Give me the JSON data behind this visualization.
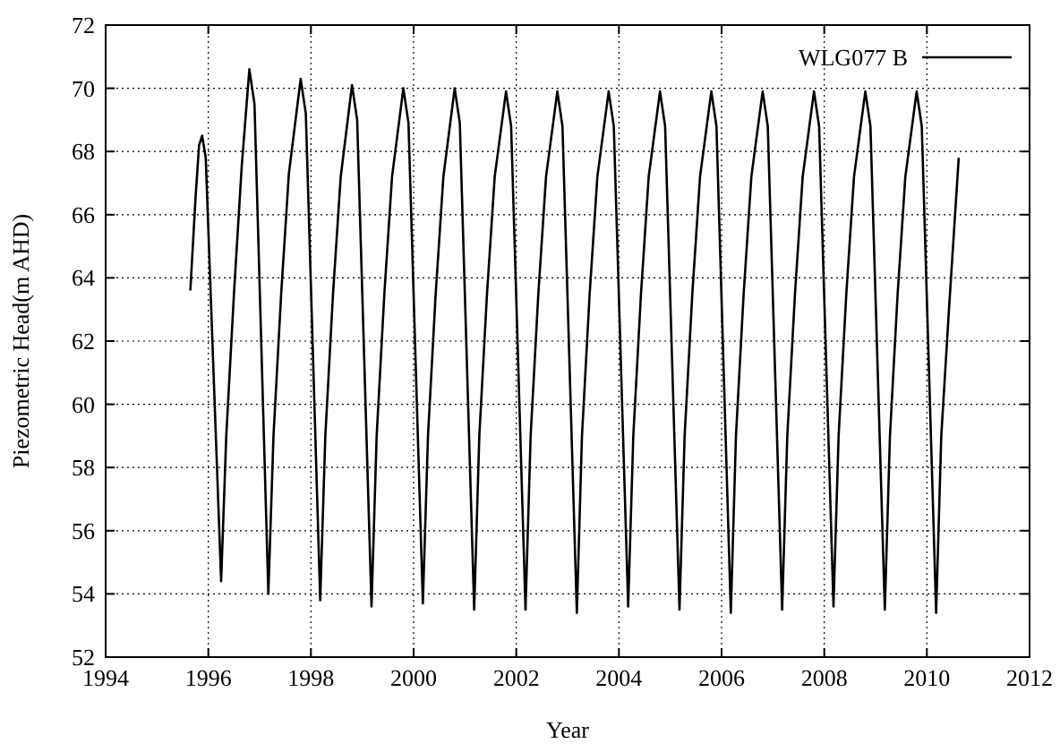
{
  "chart_data": {
    "type": "line",
    "xlabel": "Year",
    "ylabel": "Piezometric Head(m AHD)",
    "xlim": [
      1994,
      2012
    ],
    "xticks": [
      1994,
      1996,
      1998,
      2000,
      2002,
      2004,
      2006,
      2008,
      2010,
      2012
    ],
    "ylim": [
      52,
      72
    ],
    "yticks": [
      52,
      54,
      56,
      58,
      60,
      62,
      64,
      66,
      68,
      70,
      72
    ],
    "grid": true,
    "legend": "top right",
    "line_style": "solid",
    "series": [
      {
        "name": "WLG077 B",
        "color": "#000000",
        "x": [
          1995.65,
          1995.75,
          1995.82,
          1995.88,
          1995.95,
          1996.25,
          1996.35,
          1996.5,
          1996.65,
          1996.8,
          1996.9,
          1997.17,
          1997.27,
          1997.42,
          1997.57,
          1997.8,
          1997.9,
          1998.18,
          1998.28,
          1998.43,
          1998.58,
          1998.8,
          1998.9,
          1999.18,
          1999.28,
          1999.43,
          1999.58,
          1999.8,
          1999.9,
          2000.18,
          2000.28,
          2000.43,
          2000.58,
          2000.8,
          2000.9,
          2001.18,
          2001.28,
          2001.43,
          2001.58,
          2001.8,
          2001.9,
          2002.18,
          2002.28,
          2002.43,
          2002.58,
          2002.8,
          2002.9,
          2003.18,
          2003.28,
          2003.43,
          2003.58,
          2003.8,
          2003.9,
          2004.18,
          2004.28,
          2004.43,
          2004.58,
          2004.8,
          2004.9,
          2005.18,
          2005.28,
          2005.43,
          2005.58,
          2005.8,
          2005.9,
          2006.18,
          2006.28,
          2006.43,
          2006.58,
          2006.8,
          2006.9,
          2007.18,
          2007.28,
          2007.43,
          2007.58,
          2007.8,
          2007.9,
          2008.18,
          2008.28,
          2008.43,
          2008.58,
          2008.8,
          2008.9,
          2009.18,
          2009.28,
          2009.43,
          2009.58,
          2009.8,
          2009.9,
          2010.18,
          2010.28,
          2010.43,
          2010.62
        ],
        "values": [
          63.6,
          66.5,
          68.2,
          68.5,
          67.8,
          54.4,
          59,
          63.5,
          67.5,
          70.6,
          69.5,
          54.0,
          59,
          63.5,
          67.3,
          70.3,
          69.2,
          53.8,
          59,
          63.5,
          67.2,
          70.1,
          69.0,
          53.6,
          59,
          63.5,
          67.2,
          70.0,
          68.9,
          53.7,
          59,
          63.5,
          67.2,
          70.0,
          68.9,
          53.5,
          59,
          63.5,
          67.2,
          69.9,
          68.8,
          53.5,
          59,
          63.5,
          67.2,
          69.9,
          68.8,
          53.4,
          59,
          63.5,
          67.2,
          69.9,
          68.8,
          53.6,
          59,
          63.5,
          67.2,
          69.9,
          68.8,
          53.5,
          59,
          63.5,
          67.2,
          69.9,
          68.8,
          53.4,
          59,
          63.5,
          67.2,
          69.9,
          68.8,
          53.5,
          59,
          63.5,
          67.2,
          69.9,
          68.8,
          53.6,
          59,
          63.5,
          67.2,
          69.9,
          68.8,
          53.5,
          59,
          63.5,
          67.2,
          69.9,
          68.8,
          53.4,
          59,
          63,
          67.8
        ]
      }
    ]
  }
}
